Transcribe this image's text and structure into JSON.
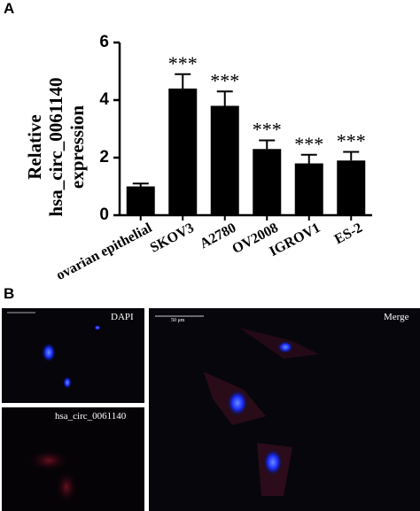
{
  "chart_data": {
    "type": "bar",
    "ylabel": "Relative hsa_circ_0061140 expression",
    "categories": [
      "ovarian epithelial",
      "SKOV3",
      "A2780",
      "OV2008",
      "IGROV1",
      "ES-2"
    ],
    "values": [
      1.0,
      4.4,
      3.8,
      2.3,
      1.8,
      1.9
    ],
    "errors": [
      0.1,
      0.5,
      0.5,
      0.3,
      0.3,
      0.3
    ],
    "significance": [
      null,
      "***",
      "***",
      "***",
      "***",
      "***"
    ],
    "color": "#000000",
    "ylim": [
      0,
      6
    ],
    "yticks": [
      0,
      2,
      4,
      6
    ]
  },
  "panel_a": "A",
  "panel_b": {
    "label": "B",
    "images": [
      "DAPI",
      "hsa_circ_0061140",
      "Merge"
    ],
    "scale_bar": "50 μm"
  }
}
